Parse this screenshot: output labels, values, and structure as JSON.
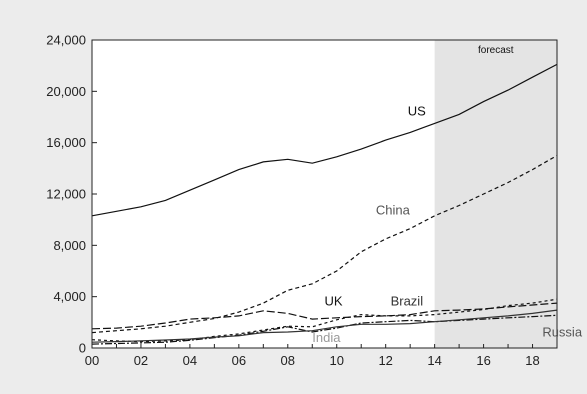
{
  "chart_data": {
    "type": "line",
    "title": "",
    "xlabel": "",
    "ylabel": "",
    "x": [
      2000,
      2001,
      2002,
      2003,
      2004,
      2005,
      2006,
      2007,
      2008,
      2009,
      2010,
      2011,
      2012,
      2013,
      2014,
      2015,
      2016,
      2017,
      2018,
      2019
    ],
    "xlim": [
      2000,
      2019
    ],
    "ylim": [
      0,
      24000
    ],
    "x_ticks": [
      2000,
      2002,
      2004,
      2006,
      2008,
      2010,
      2012,
      2014,
      2016,
      2018
    ],
    "x_tick_labels": [
      "00",
      "02",
      "04",
      "06",
      "08",
      "10",
      "12",
      "14",
      "16",
      "18"
    ],
    "y_ticks": [
      0,
      4000,
      8000,
      12000,
      16000,
      20000,
      24000
    ],
    "y_tick_labels": [
      "0",
      "4,000",
      "8,000",
      "12,000",
      "16,000",
      "20,000",
      "24,000"
    ],
    "grid": false,
    "legend": "none",
    "forecast_region": {
      "label": "forecast",
      "x_start": 2014,
      "x_end": 2019,
      "color": "#e4e4e4"
    },
    "series": [
      {
        "name": "US",
        "label_at": [
          2012.9,
          18100
        ],
        "label_color": "#111111",
        "dash": "",
        "color": "#111111",
        "values": [
          10300,
          10650,
          11000,
          11500,
          12300,
          13100,
          13900,
          14500,
          14700,
          14400,
          14900,
          15500,
          16200,
          16800,
          17500,
          18200,
          19200,
          20100,
          21100,
          22100
        ]
      },
      {
        "name": "China",
        "label_at": [
          2011.6,
          10400
        ],
        "label_color": "#555555",
        "dash": "4,3",
        "color": "#111111",
        "values": [
          1200,
          1350,
          1500,
          1700,
          2000,
          2300,
          2800,
          3500,
          4500,
          5000,
          6000,
          7500,
          8500,
          9300,
          10300,
          11100,
          12000,
          12900,
          13900,
          15000
        ]
      },
      {
        "name": "UK",
        "label_at": [
          2009.5,
          3300
        ],
        "label_color": "#111111",
        "dash": "8,3",
        "color": "#111111",
        "values": [
          1500,
          1550,
          1700,
          1950,
          2250,
          2350,
          2500,
          2900,
          2700,
          2250,
          2350,
          2450,
          2500,
          2600,
          2900,
          2950,
          3050,
          3200,
          3350,
          3500
        ]
      },
      {
        "name": "Brazil",
        "label_at": [
          2012.2,
          3300
        ],
        "label_color": "#333333",
        "dash": "3,3",
        "color": "#111111",
        "values": [
          650,
          550,
          500,
          550,
          650,
          900,
          1100,
          1400,
          1700,
          1650,
          2200,
          2600,
          2500,
          2500,
          2600,
          2800,
          3000,
          3300,
          3500,
          3800
        ]
      },
      {
        "name": "Russia",
        "label_at": [
          2018.4,
          900
        ],
        "label_color": "#555555",
        "dash": "7,2,2,2",
        "color": "#111111",
        "values": [
          300,
          350,
          400,
          450,
          600,
          800,
          1000,
          1300,
          1650,
          1250,
          1550,
          1950,
          2050,
          2150,
          2050,
          2150,
          2250,
          2350,
          2450,
          2550
        ]
      },
      {
        "name": "India",
        "label_at": [
          2009.0,
          450
        ],
        "label_color": "#9a9a9a",
        "dash": "",
        "color": "#333333",
        "values": [
          450,
          500,
          550,
          620,
          700,
          850,
          950,
          1200,
          1250,
          1350,
          1650,
          1850,
          1850,
          1900,
          2050,
          2200,
          2350,
          2500,
          2700,
          2950
        ]
      }
    ]
  }
}
